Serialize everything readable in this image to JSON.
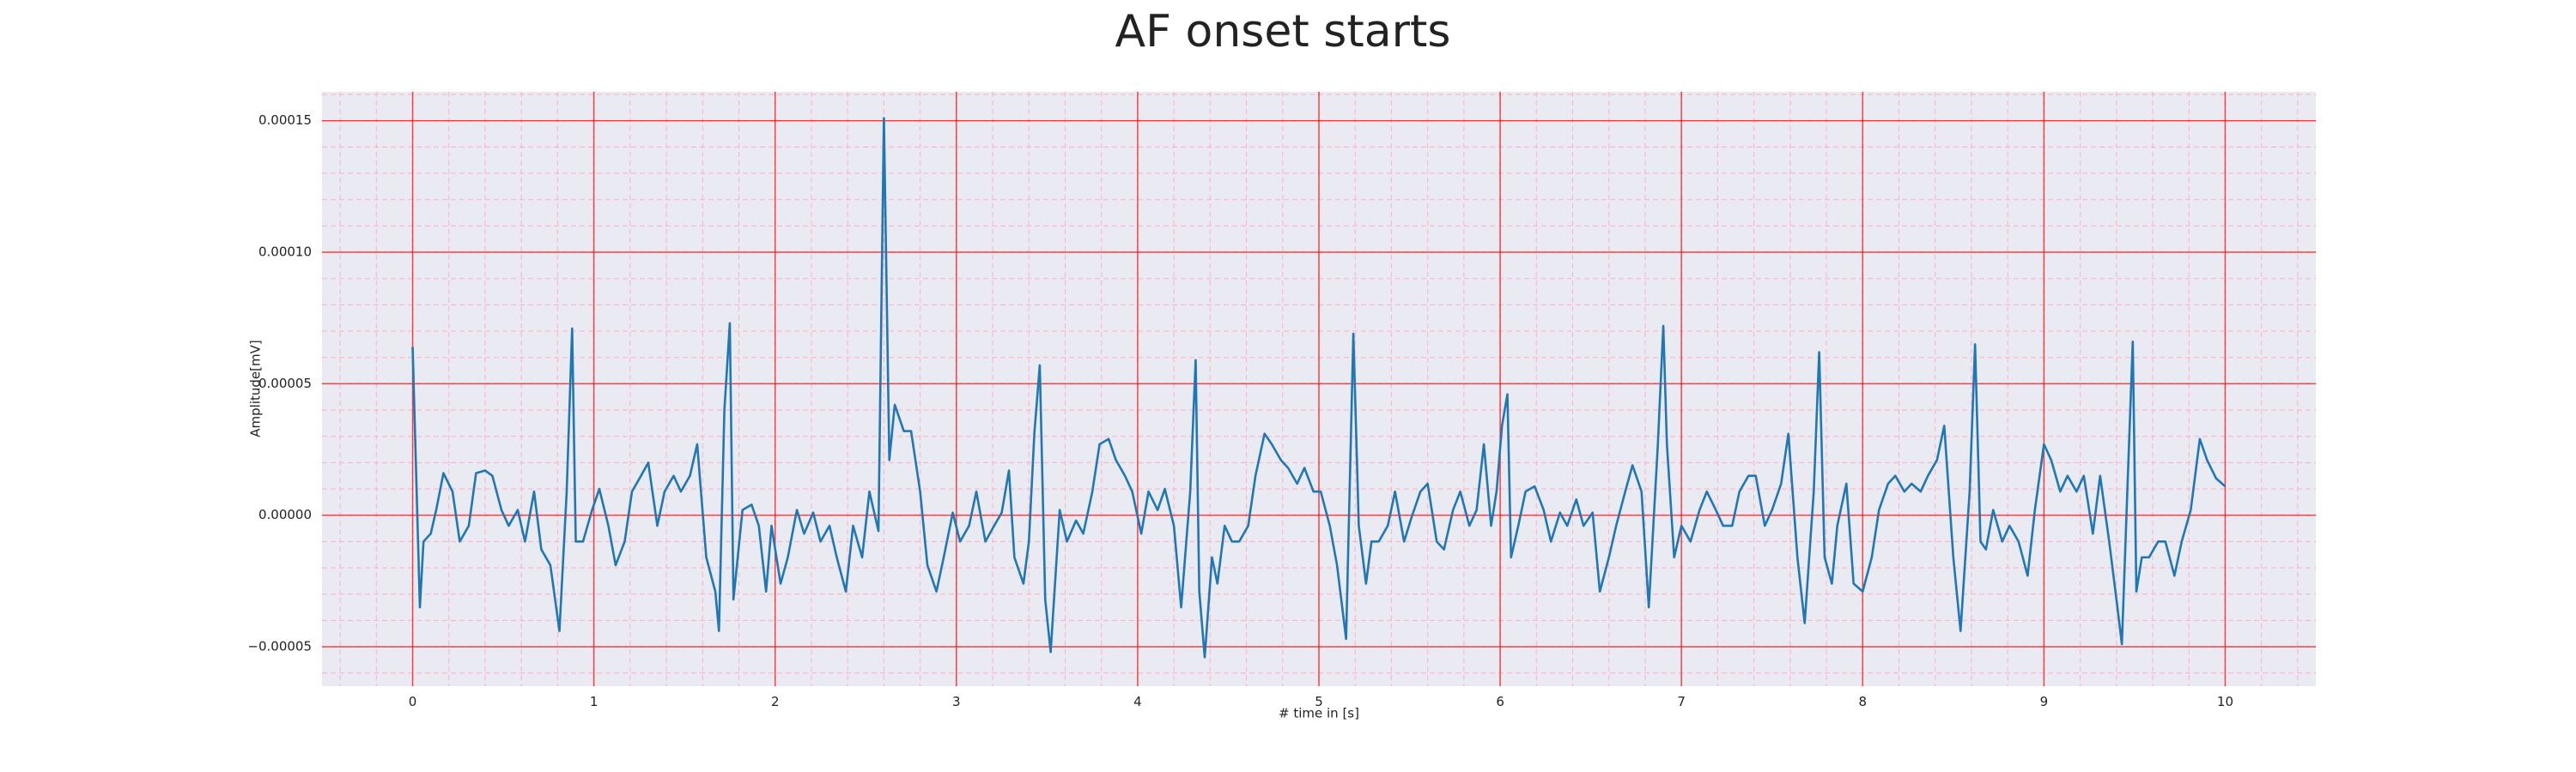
{
  "chart_data": {
    "type": "line",
    "title": "AF onset starts",
    "xlabel": "# time in [s]",
    "ylabel": "Amplitude[mV]",
    "xlim": [
      -0.5,
      10.5
    ],
    "ylim": [
      -6.5e-05,
      0.000161
    ],
    "xticks": [
      0,
      1,
      2,
      3,
      4,
      5,
      6,
      7,
      8,
      9,
      10
    ],
    "yticks": [
      {
        "value": -5e-05,
        "label": "−0.00005"
      },
      {
        "value": 0,
        "label": "0.00000"
      },
      5e-05,
      {
        "value": 0.0001,
        "label": "0.00010"
      },
      0.00015
    ],
    "grid": true,
    "minor_grid": true,
    "grid_color": "#ff0000",
    "minor_grid_color": "#ffb0c0",
    "background": "#eaeaf2",
    "series": [
      {
        "color": "#1f77b4",
        "x": [
          0,
          0.04,
          0.06,
          0.1,
          0.13,
          0.17,
          0.22,
          0.26,
          0.31,
          0.35,
          0.4,
          0.44,
          0.49,
          0.53,
          0.58,
          0.62,
          0.67,
          0.71,
          0.76,
          0.81,
          0.85,
          0.88,
          0.9,
          0.94,
          0.99,
          1.03,
          1.08,
          1.12,
          1.17,
          1.21,
          1.26,
          1.3,
          1.35,
          1.39,
          1.44,
          1.48,
          1.53,
          1.57,
          1.62,
          1.67,
          1.69,
          1.72,
          1.75,
          1.77,
          1.82,
          1.87,
          1.91,
          1.95,
          1.98,
          2.03,
          2.07,
          2.12,
          2.16,
          2.21,
          2.25,
          2.3,
          2.34,
          2.39,
          2.43,
          2.48,
          2.52,
          2.57,
          2.6,
          2.63,
          2.66,
          2.71,
          2.75,
          2.8,
          2.84,
          2.89,
          2.93,
          2.98,
          3.02,
          3.07,
          3.11,
          3.16,
          3.2,
          3.25,
          3.29,
          3.32,
          3.37,
          3.4,
          3.43,
          3.46,
          3.49,
          3.52,
          3.57,
          3.61,
          3.66,
          3.7,
          3.75,
          3.79,
          3.84,
          3.88,
          3.93,
          3.97,
          4.02,
          4.06,
          4.11,
          4.15,
          4.2,
          4.24,
          4.29,
          4.32,
          4.34,
          4.37,
          4.41,
          4.44,
          4.48,
          4.52,
          4.56,
          4.61,
          4.65,
          4.7,
          4.74,
          4.79,
          4.83,
          4.88,
          4.92,
          4.97,
          5.01,
          5.06,
          5.1,
          5.15,
          5.18,
          5.19,
          5.22,
          5.26,
          5.29,
          5.33,
          5.38,
          5.42,
          5.47,
          5.51,
          5.56,
          5.6,
          5.65,
          5.69,
          5.74,
          5.78,
          5.83,
          5.87,
          5.91,
          5.95,
          5.98,
          6.01,
          6.04,
          6.06,
          6.1,
          6.14,
          6.19,
          6.24,
          6.28,
          6.33,
          6.37,
          6.42,
          6.46,
          6.51,
          6.55,
          6.6,
          6.64,
          6.69,
          6.73,
          6.78,
          6.82,
          6.87,
          6.9,
          6.92,
          6.96,
          7.0,
          7.05,
          7.1,
          7.14,
          7.19,
          7.23,
          7.28,
          7.32,
          7.37,
          7.41,
          7.46,
          7.5,
          7.55,
          7.59,
          7.64,
          7.68,
          7.73,
          7.76,
          7.79,
          7.83,
          7.86,
          7.91,
          7.95,
          8.0,
          8.05,
          8.09,
          8.14,
          8.18,
          8.23,
          8.27,
          8.32,
          8.36,
          8.41,
          8.45,
          8.5,
          8.54,
          8.59,
          8.62,
          8.65,
          8.68,
          8.72,
          8.77,
          8.81,
          8.86,
          8.91,
          8.95,
          9.0,
          9.04,
          9.09,
          9.13,
          9.18,
          9.22,
          9.27,
          9.31,
          9.36,
          9.4,
          9.43,
          9.46,
          9.49,
          9.51,
          9.54,
          9.58,
          9.63,
          9.67,
          9.72,
          9.76,
          9.81,
          9.86,
          9.9,
          9.95,
          10.0
        ],
        "values": [
          6.4e-05,
          -3.5e-05,
          -1e-05,
          -7e-06,
          2e-06,
          1.6e-05,
          9e-06,
          -1e-05,
          -4e-06,
          1.6e-05,
          1.7e-05,
          1.5e-05,
          2e-06,
          -4e-06,
          2e-06,
          -1e-05,
          9e-06,
          -1.3e-05,
          -1.9e-05,
          -4.4e-05,
          9e-06,
          7.1e-05,
          -1e-05,
          -1e-05,
          2e-06,
          1e-05,
          -4e-06,
          -1.9e-05,
          -1e-05,
          9e-06,
          1.5e-05,
          2e-05,
          -4e-06,
          9e-06,
          1.5e-05,
          9e-06,
          1.5e-05,
          2.7e-05,
          -1.6e-05,
          -2.9e-05,
          -4.4e-05,
          4e-05,
          7.3e-05,
          -3.2e-05,
          2e-06,
          4e-06,
          -4e-06,
          -2.9e-05,
          -4e-06,
          -2.6e-05,
          -1.6e-05,
          2e-06,
          -7e-06,
          1e-06,
          -1e-05,
          -4e-06,
          -1.6e-05,
          -2.9e-05,
          -4e-06,
          -1.6e-05,
          9e-06,
          -6e-06,
          0.000151,
          2.1e-05,
          4.2e-05,
          3.2e-05,
          3.2e-05,
          9e-06,
          -1.9e-05,
          -2.9e-05,
          -1.6e-05,
          1e-06,
          -1e-05,
          -4e-06,
          9e-06,
          -1e-05,
          -5e-06,
          1e-06,
          1.7e-05,
          -1.6e-05,
          -2.6e-05,
          -1e-05,
          3.1e-05,
          5.7e-05,
          -3.2e-05,
          -5.2e-05,
          2e-06,
          -1e-05,
          -2e-06,
          -7e-06,
          9e-06,
          2.7e-05,
          2.9e-05,
          2.1e-05,
          1.5e-05,
          9e-06,
          -7e-06,
          9e-06,
          2e-06,
          1e-05,
          -4e-06,
          -3.5e-05,
          9e-06,
          5.9e-05,
          -2.9e-05,
          -5.4e-05,
          -1.6e-05,
          -2.6e-05,
          -4e-06,
          -1e-05,
          -1e-05,
          -4e-06,
          1.5e-05,
          3.1e-05,
          2.7e-05,
          2.1e-05,
          1.8e-05,
          1.2e-05,
          1.8e-05,
          9e-06,
          9e-06,
          -4e-06,
          -1.9e-05,
          -4.7e-05,
          4e-05,
          6.9e-05,
          -4e-06,
          -2.6e-05,
          -1e-05,
          -1e-05,
          -4e-06,
          9e-06,
          -1e-05,
          -1e-06,
          9e-06,
          1.2e-05,
          -1e-05,
          -1.3e-05,
          2e-06,
          9e-06,
          -4e-06,
          2e-06,
          2.7e-05,
          -4e-06,
          9e-06,
          3.4e-05,
          4.6e-05,
          -1.6e-05,
          -4e-06,
          9e-06,
          1.1e-05,
          2e-06,
          -1e-05,
          1e-06,
          -4e-06,
          6e-06,
          -4e-06,
          1e-06,
          -2.9e-05,
          -1.6e-05,
          -4e-06,
          9e-06,
          1.9e-05,
          9e-06,
          -3.5e-05,
          2.7e-05,
          7.2e-05,
          2.7e-05,
          -1.6e-05,
          -4e-06,
          -1e-05,
          2e-06,
          9e-06,
          2e-06,
          -4e-06,
          -4e-06,
          9e-06,
          1.5e-05,
          1.5e-05,
          -4e-06,
          2e-06,
          1.2e-05,
          3.1e-05,
          -1.6e-05,
          -4.1e-05,
          9e-06,
          6.2e-05,
          -1.6e-05,
          -2.6e-05,
          -4e-06,
          1.2e-05,
          -2.6e-05,
          -2.9e-05,
          -1.6e-05,
          2e-06,
          1.2e-05,
          1.5e-05,
          9e-06,
          1.2e-05,
          9e-06,
          1.5e-05,
          2.1e-05,
          3.4e-05,
          -1.6e-05,
          -4.4e-05,
          9e-06,
          6.5e-05,
          -1e-05,
          -1.3e-05,
          2e-06,
          -1e-05,
          -4e-06,
          -1e-05,
          -2.3e-05,
          2e-06,
          2.7e-05,
          2.1e-05,
          9e-06,
          1.5e-05,
          9e-06,
          1.5e-05,
          -7e-06,
          1.5e-05,
          -1e-05,
          -3.2e-05,
          -4.9e-05,
          9e-06,
          6.6e-05,
          -2.9e-05,
          -1.6e-05,
          -1.6e-05,
          -1e-05,
          -1e-05,
          -2.3e-05,
          -1e-05,
          2e-06,
          2.9e-05,
          2.1e-05,
          1.4e-05,
          1.1e-05
        ]
      }
    ]
  }
}
